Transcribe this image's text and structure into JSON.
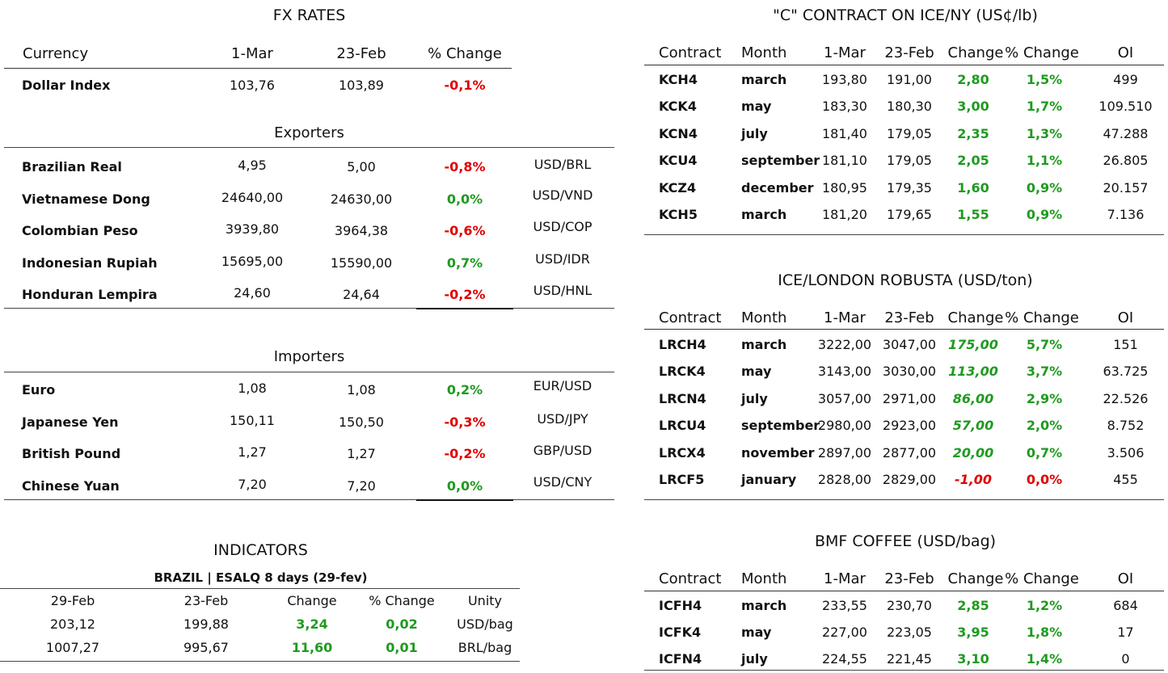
{
  "fx": {
    "title": "FX RATES",
    "headers": [
      "Currency",
      "1-Mar",
      "23-Feb",
      "% Change"
    ],
    "dollar_index": {
      "name": "Dollar Index",
      "a": "103,76",
      "b": "103,89",
      "chg": "-0,1%",
      "dir": "down"
    },
    "exporters_title": "Exporters",
    "exporters": [
      {
        "name": "Brazilian Real",
        "a": "4,95",
        "b": "5,00",
        "chg": "-0,8%",
        "dir": "down",
        "pair": "USD/BRL"
      },
      {
        "name": "Vietnamese Dong",
        "a": "24640,00",
        "b": "24630,00",
        "chg": "0,0%",
        "dir": "up",
        "pair": "USD/VND"
      },
      {
        "name": "Colombian Peso",
        "a": "3939,80",
        "b": "3964,38",
        "chg": "-0,6%",
        "dir": "down",
        "pair": "USD/COP"
      },
      {
        "name": "Indonesian Rupiah",
        "a": "15695,00",
        "b": "15590,00",
        "chg": "0,7%",
        "dir": "up",
        "pair": "USD/IDR"
      },
      {
        "name": "Honduran Lempira",
        "a": "24,60",
        "b": "24,64",
        "chg": "-0,2%",
        "dir": "down",
        "pair": "USD/HNL"
      }
    ],
    "importers_title": "Importers",
    "importers": [
      {
        "name": "Euro",
        "a": "1,08",
        "b": "1,08",
        "chg": "0,2%",
        "dir": "up",
        "pair": "EUR/USD"
      },
      {
        "name": "Japanese Yen",
        "a": "150,11",
        "b": "150,50",
        "chg": "-0,3%",
        "dir": "down",
        "pair": "USD/JPY"
      },
      {
        "name": "British Pound",
        "a": "1,27",
        "b": "1,27",
        "chg": "-0,2%",
        "dir": "down",
        "pair": "GBP/USD"
      },
      {
        "name": "Chinese Yuan",
        "a": "7,20",
        "b": "7,20",
        "chg": "0,0%",
        "dir": "up",
        "pair": "USD/CNY"
      }
    ]
  },
  "indicators": {
    "title": "INDICATORS",
    "subtitle": "BRAZIL | ESALQ 8 days (29-fev)",
    "headers": [
      "29-Feb",
      "23-Feb",
      "Change",
      "% Change",
      "Unity"
    ],
    "rows": [
      {
        "a": "203,12",
        "b": "199,88",
        "chg": "3,24",
        "pct": "0,02",
        "unit": "USD/bag"
      },
      {
        "a": "1007,27",
        "b": "995,67",
        "chg": "11,60",
        "pct": "0,01",
        "unit": "BRL/bag"
      }
    ]
  },
  "ice_ny": {
    "title": "\"C\" CONTRACT ON ICE/NY (US¢/lb)",
    "headers": [
      "Contract",
      "Month",
      "1-Mar",
      "23-Feb",
      "Change",
      "% Change",
      "OI"
    ],
    "rows": [
      {
        "contract": "KCH4",
        "month": "march",
        "a": "193,80",
        "b": "191,00",
        "chg": "2,80",
        "pct": "1,5%",
        "oi": "499",
        "dir": "up"
      },
      {
        "contract": "KCK4",
        "month": "may",
        "a": "183,30",
        "b": "180,30",
        "chg": "3,00",
        "pct": "1,7%",
        "oi": "109.510",
        "dir": "up"
      },
      {
        "contract": "KCN4",
        "month": "july",
        "a": "181,40",
        "b": "179,05",
        "chg": "2,35",
        "pct": "1,3%",
        "oi": "47.288",
        "dir": "up"
      },
      {
        "contract": "KCU4",
        "month": "september",
        "a": "181,10",
        "b": "179,05",
        "chg": "2,05",
        "pct": "1,1%",
        "oi": "26.805",
        "dir": "up"
      },
      {
        "contract": "KCZ4",
        "month": "december",
        "a": "180,95",
        "b": "179,35",
        "chg": "1,60",
        "pct": "0,9%",
        "oi": "20.157",
        "dir": "up"
      },
      {
        "contract": "KCH5",
        "month": "march",
        "a": "181,20",
        "b": "179,65",
        "chg": "1,55",
        "pct": "0,9%",
        "oi": "7.136",
        "dir": "up"
      }
    ]
  },
  "ice_london": {
    "title": "ICE/LONDON ROBUSTA (USD/ton)",
    "headers": [
      "Contract",
      "Month",
      "1-Mar",
      "23-Feb",
      "Change",
      "% Change",
      "OI"
    ],
    "rows": [
      {
        "contract": "LRCH4",
        "month": "march",
        "a": "3222,00",
        "b": "3047,00",
        "chg": "175,00",
        "pct": "5,7%",
        "oi": "151",
        "dir": "up"
      },
      {
        "contract": "LRCK4",
        "month": "may",
        "a": "3143,00",
        "b": "3030,00",
        "chg": "113,00",
        "pct": "3,7%",
        "oi": "63.725",
        "dir": "up"
      },
      {
        "contract": "LRCN4",
        "month": "july",
        "a": "3057,00",
        "b": "2971,00",
        "chg": "86,00",
        "pct": "2,9%",
        "oi": "22.526",
        "dir": "up"
      },
      {
        "contract": "LRCU4",
        "month": "september",
        "a": "2980,00",
        "b": "2923,00",
        "chg": "57,00",
        "pct": "2,0%",
        "oi": "8.752",
        "dir": "up"
      },
      {
        "contract": "LRCX4",
        "month": "november",
        "a": "2897,00",
        "b": "2877,00",
        "chg": "20,00",
        "pct": "0,7%",
        "oi": "3.506",
        "dir": "up"
      },
      {
        "contract": "LRCF5",
        "month": "january",
        "a": "2828,00",
        "b": "2829,00",
        "chg": "-1,00",
        "pct": "0,0%",
        "oi": "455",
        "dir": "down"
      }
    ]
  },
  "bmf": {
    "title": "BMF COFFEE (USD/bag)",
    "headers": [
      "Contract",
      "Month",
      "1-Mar",
      "23-Feb",
      "Change",
      "% Change",
      "OI"
    ],
    "rows": [
      {
        "contract": "ICFH4",
        "month": "march",
        "a": "233,55",
        "b": "230,70",
        "chg": "2,85",
        "pct": "1,2%",
        "oi": "684",
        "dir": "up"
      },
      {
        "contract": "ICFK4",
        "month": "may",
        "a": "227,00",
        "b": "223,05",
        "chg": "3,95",
        "pct": "1,8%",
        "oi": "17",
        "dir": "up"
      },
      {
        "contract": "ICFN4",
        "month": "july",
        "a": "224,55",
        "b": "221,45",
        "chg": "3,10",
        "pct": "1,4%",
        "oi": "0",
        "dir": "up"
      }
    ]
  },
  "colors": {
    "up": "#1f9a1f",
    "down": "#e00000"
  }
}
